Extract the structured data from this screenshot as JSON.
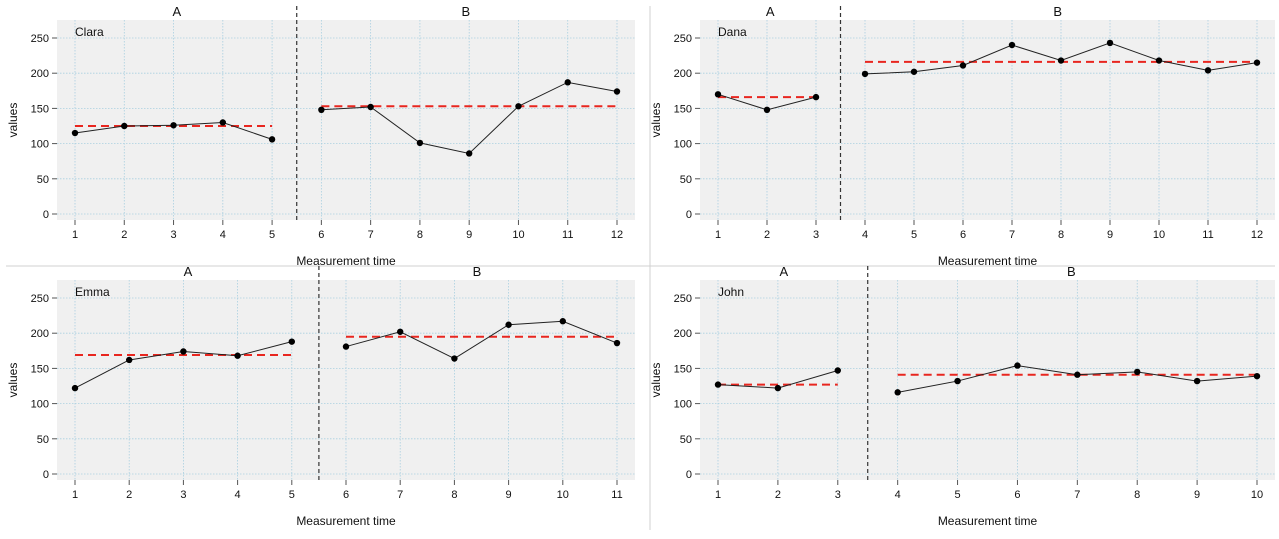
{
  "chart_data": [
    {
      "type": "line",
      "participant": "Clara",
      "xlabel": "Measurement time",
      "ylabel": "values",
      "ylim": [
        0,
        250
      ],
      "yticks": [
        0,
        50,
        100,
        150,
        200,
        250
      ],
      "phases": [
        {
          "name": "A",
          "x": [
            1,
            2,
            3,
            4,
            5
          ],
          "values": [
            115,
            125,
            126,
            130,
            106
          ],
          "mean": 125
        },
        {
          "name": "B",
          "x": [
            6,
            7,
            8,
            9,
            10,
            11,
            12
          ],
          "values": [
            148,
            152,
            101,
            86,
            153,
            187,
            174
          ],
          "mean": 153
        }
      ],
      "grid": true
    },
    {
      "type": "line",
      "participant": "Dana",
      "xlabel": "Measurement time",
      "ylabel": "values",
      "ylim": [
        0,
        250
      ],
      "yticks": [
        0,
        50,
        100,
        150,
        200,
        250
      ],
      "phases": [
        {
          "name": "A",
          "x": [
            1,
            2,
            3
          ],
          "values": [
            170,
            148,
            166
          ],
          "mean": 166
        },
        {
          "name": "B",
          "x": [
            4,
            5,
            6,
            7,
            8,
            9,
            10,
            11,
            12
          ],
          "values": [
            199,
            202,
            211,
            240,
            218,
            243,
            218,
            204,
            215
          ],
          "mean": 216
        }
      ],
      "grid": true
    },
    {
      "type": "line",
      "participant": "Emma",
      "xlabel": "Measurement time",
      "ylabel": "values",
      "ylim": [
        0,
        250
      ],
      "yticks": [
        0,
        50,
        100,
        150,
        200,
        250
      ],
      "phases": [
        {
          "name": "A",
          "x": [
            1,
            2,
            3,
            4,
            5
          ],
          "values": [
            122,
            162,
            174,
            168,
            188
          ],
          "mean": 169
        },
        {
          "name": "B",
          "x": [
            6,
            7,
            8,
            9,
            10,
            11
          ],
          "values": [
            181,
            202,
            164,
            212,
            217,
            186
          ],
          "mean": 195
        }
      ],
      "grid": true
    },
    {
      "type": "line",
      "participant": "John",
      "xlabel": "Measurement time",
      "ylabel": "values",
      "ylim": [
        0,
        250
      ],
      "yticks": [
        0,
        50,
        100,
        150,
        200,
        250
      ],
      "phases": [
        {
          "name": "A",
          "x": [
            1,
            2,
            3
          ],
          "values": [
            127,
            122,
            147
          ],
          "mean": 127
        },
        {
          "name": "B",
          "x": [
            4,
            5,
            6,
            7,
            8,
            9,
            10
          ],
          "values": [
            116,
            132,
            154,
            141,
            145,
            132,
            139
          ],
          "mean": 141
        }
      ],
      "grid": true
    }
  ],
  "colors": {
    "panel_bg": "#f0f0f0",
    "grid": "#a9cfe0",
    "series": "#222222",
    "mean_line": "#e8261f",
    "phase_divider": "#333333",
    "text": "#111111"
  }
}
